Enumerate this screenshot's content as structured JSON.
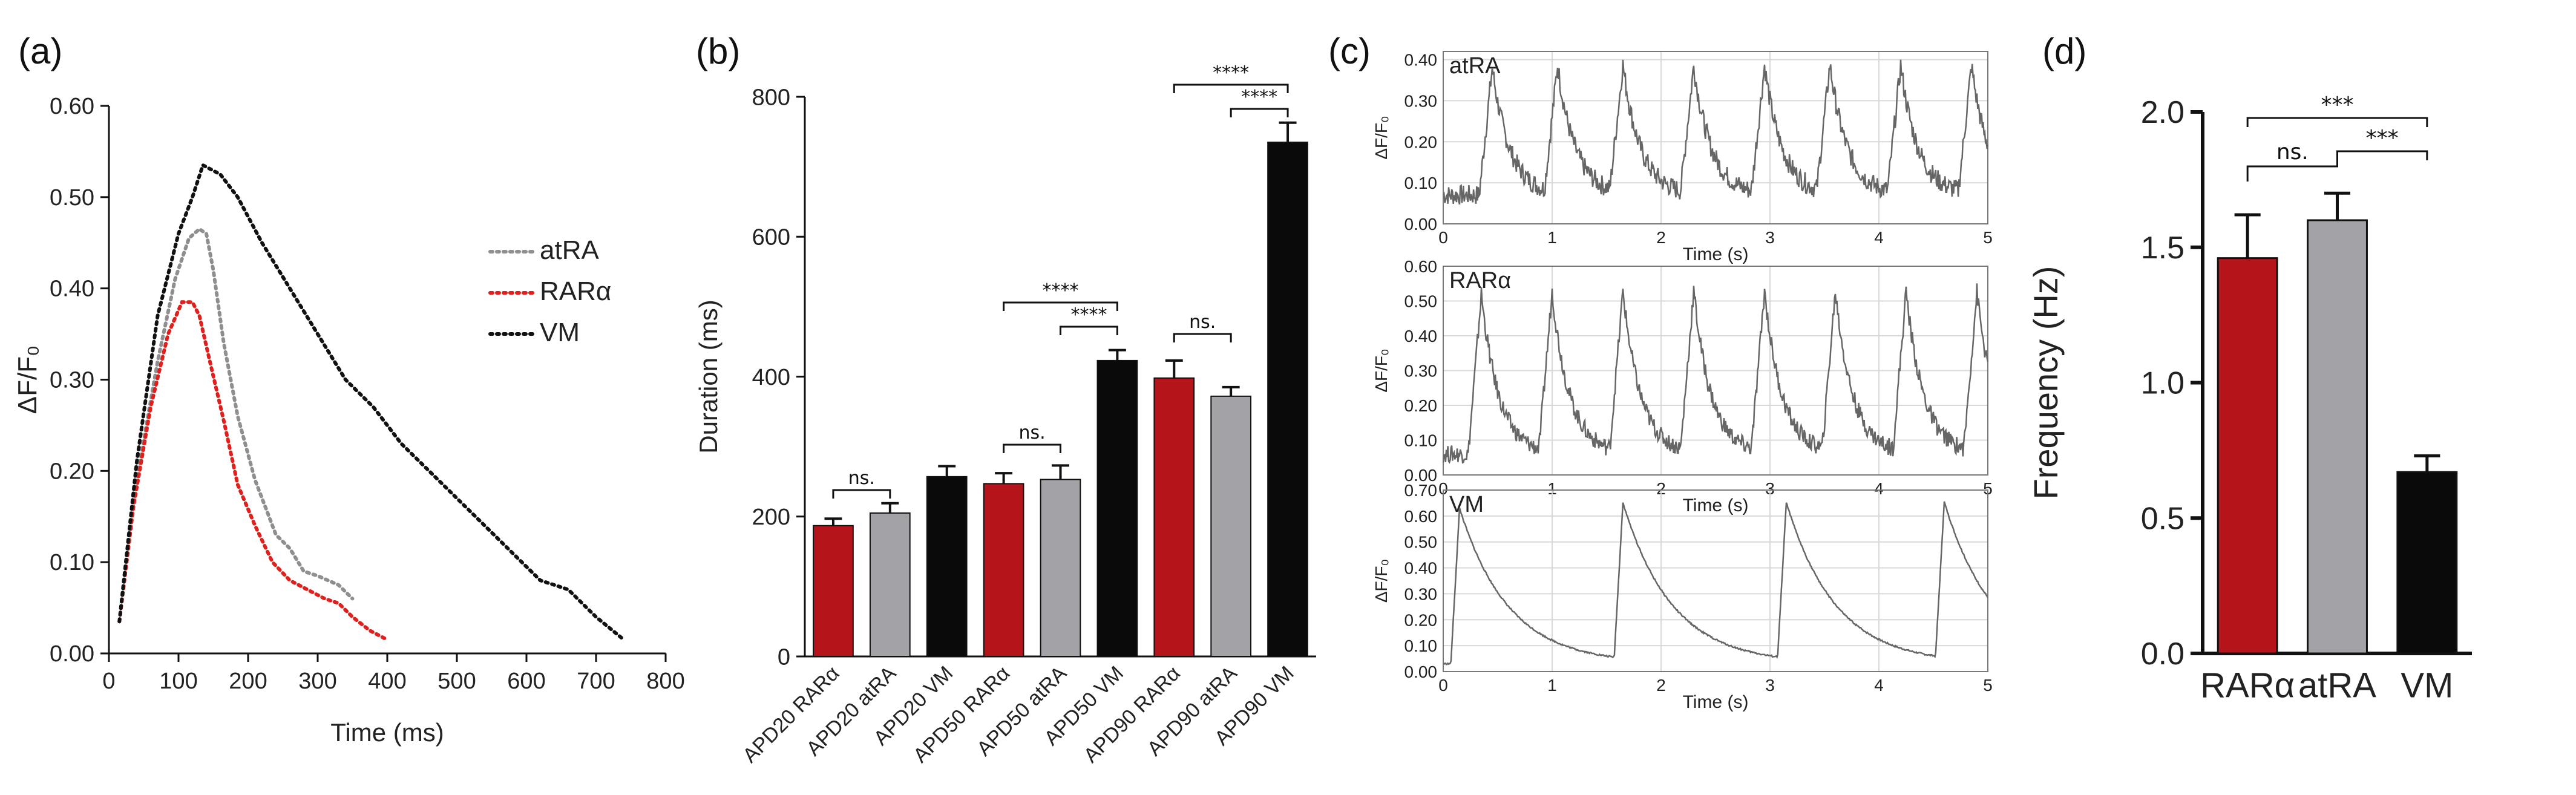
{
  "chart_data": [
    {
      "panel": "(a)",
      "type": "line",
      "xlabel": "Time (ms)",
      "ylabel": "ΔF/F₀",
      "xlim": [
        0,
        800
      ],
      "ylim": [
        0,
        0.6
      ],
      "xticks": [
        "0",
        "100",
        "200",
        "300",
        "400",
        "500",
        "600",
        "700",
        "800"
      ],
      "yticks": [
        "0.00",
        "0.10",
        "0.20",
        "0.30",
        "0.40",
        "0.50",
        "0.60"
      ],
      "legend": [
        "atRA",
        "RARα",
        "VM"
      ],
      "legend_position": "top-right",
      "colors": {
        "atRA": "#8f8f8f",
        "RARα": "#e0201c",
        "VM": "#111111"
      },
      "series": [
        {
          "name": "atRA",
          "x": [
            15,
            40,
            70,
            95,
            115,
            130,
            140,
            150,
            165,
            185,
            210,
            240,
            260,
            280,
            300,
            330,
            350
          ],
          "y": [
            0.035,
            0.19,
            0.32,
            0.41,
            0.455,
            0.465,
            0.46,
            0.42,
            0.34,
            0.26,
            0.19,
            0.13,
            0.115,
            0.09,
            0.085,
            0.075,
            0.06
          ]
        },
        {
          "name": "RARα",
          "x": [
            15,
            35,
            60,
            85,
            105,
            120,
            130,
            145,
            165,
            185,
            210,
            235,
            260,
            285,
            310,
            330,
            350,
            375,
            400
          ],
          "y": [
            0.035,
            0.16,
            0.27,
            0.35,
            0.385,
            0.385,
            0.37,
            0.32,
            0.255,
            0.185,
            0.14,
            0.1,
            0.08,
            0.07,
            0.06,
            0.055,
            0.04,
            0.025,
            0.015
          ]
        },
        {
          "name": "VM",
          "x": [
            15,
            40,
            70,
            100,
            120,
            135,
            160,
            185,
            220,
            260,
            300,
            340,
            380,
            420,
            460,
            500,
            540,
            580,
            620,
            660,
            700,
            740
          ],
          "y": [
            0.035,
            0.21,
            0.37,
            0.46,
            0.5,
            0.535,
            0.525,
            0.5,
            0.45,
            0.4,
            0.35,
            0.3,
            0.27,
            0.23,
            0.2,
            0.17,
            0.14,
            0.11,
            0.08,
            0.07,
            0.04,
            0.015
          ]
        }
      ]
    },
    {
      "panel": "(b)",
      "type": "bar",
      "ylabel": "Duration (ms)",
      "ylim": [
        0,
        800
      ],
      "yticks": [
        "0",
        "200",
        "400",
        "600",
        "800"
      ],
      "categories": [
        "APD20 RARα",
        "APD20 atRA",
        "APD20 VM",
        "APD50 RARα",
        "APD50 atRA",
        "APD50 VM",
        "APD90 RARα",
        "APD90 atRA",
        "APD90 VM"
      ],
      "values": [
        187,
        205,
        257,
        247,
        253,
        423,
        398,
        372,
        735
      ],
      "errors": [
        10,
        14,
        15,
        15,
        20,
        15,
        25,
        13,
        28
      ],
      "bar_colors": [
        "#b5141b",
        "#a3a3a7",
        "#0a0a0a",
        "#b5141b",
        "#a3a3a7",
        "#0a0a0a",
        "#b5141b",
        "#a3a3a7",
        "#0a0a0a"
      ],
      "significance": [
        {
          "from": 0,
          "to": 1,
          "label": "ns."
        },
        {
          "from": 3,
          "to": 4,
          "label": "ns."
        },
        {
          "from": 3,
          "to": 5,
          "label": "****"
        },
        {
          "from": 4,
          "to": 5,
          "label": "****"
        },
        {
          "from": 6,
          "to": 7,
          "label": "ns."
        },
        {
          "from": 6,
          "to": 8,
          "label": "****"
        },
        {
          "from": 7,
          "to": 8,
          "label": "****"
        }
      ]
    },
    {
      "panel": "(c)",
      "type": "line",
      "xlabel": "Time (s)",
      "ylabel": "ΔF/F₀",
      "xticks": [
        "0",
        "1",
        "2",
        "3",
        "4",
        "5"
      ],
      "xlim": [
        0,
        5
      ],
      "subplots": [
        {
          "label": "atRA",
          "ylim": [
            0,
            0.42
          ],
          "yticks": [
            "0.00",
            "0.10",
            "0.20",
            "0.30",
            "0.40"
          ],
          "peak_times": [
            0.45,
            1.05,
            1.65,
            2.3,
            2.95,
            3.55,
            4.2,
            4.85
          ],
          "peak_height": 0.38,
          "baseline": 0.07,
          "decay": "fast"
        },
        {
          "label": "RARα",
          "ylim": [
            0,
            0.6
          ],
          "yticks": [
            "0.00",
            "0.10",
            "0.20",
            "0.30",
            "0.40",
            "0.50",
            "0.60"
          ],
          "peak_times": [
            0.35,
            1.0,
            1.65,
            2.3,
            2.95,
            3.6,
            4.25,
            4.9
          ],
          "peak_height": 0.52,
          "baseline": 0.06,
          "decay": "fast"
        },
        {
          "label": "VM",
          "ylim": [
            0,
            0.7
          ],
          "yticks": [
            "0.00",
            "0.10",
            "0.20",
            "0.30",
            "0.40",
            "0.50",
            "0.60",
            "0.70"
          ],
          "peak_times": [
            0.15,
            1.65,
            3.15,
            4.6
          ],
          "peak_height": 0.63,
          "baseline": 0.03,
          "decay": "slow"
        }
      ]
    },
    {
      "panel": "(d)",
      "type": "bar",
      "ylabel": "Frequency (Hz)",
      "ylim": [
        0,
        2.0
      ],
      "yticks": [
        "0.0",
        "0.5",
        "1.0",
        "1.5",
        "2.0"
      ],
      "categories": [
        "RARα",
        "atRA",
        "VM"
      ],
      "values": [
        1.46,
        1.6,
        0.67
      ],
      "errors": [
        0.16,
        0.1,
        0.06
      ],
      "bar_colors": [
        "#b5141b",
        "#a3a3a7",
        "#0a0a0a"
      ],
      "significance": [
        {
          "from": 0,
          "to": 1,
          "label": "ns."
        },
        {
          "from": 0,
          "to": 2,
          "label": "***"
        },
        {
          "from": 1,
          "to": 2,
          "label": "***"
        }
      ]
    }
  ]
}
